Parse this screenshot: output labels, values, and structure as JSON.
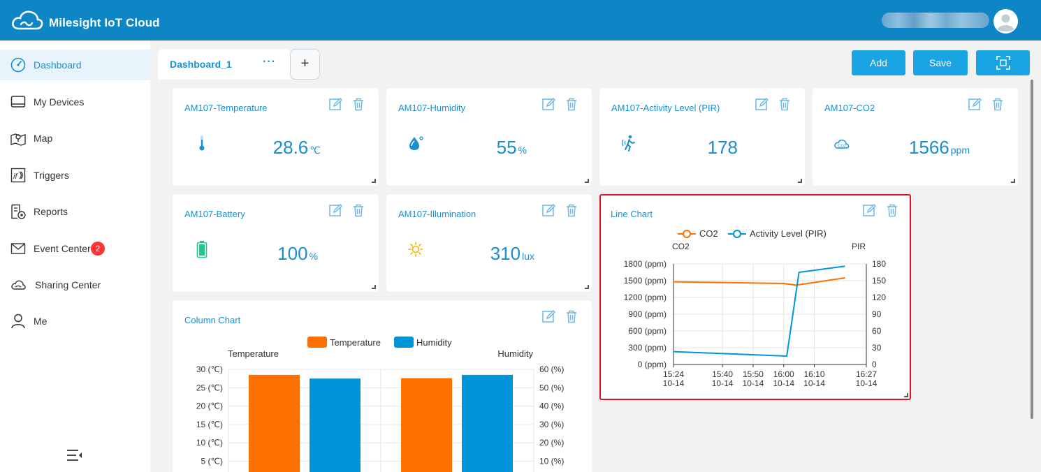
{
  "header": {
    "app_title": "Milesight IoT Cloud"
  },
  "sidebar": {
    "items": [
      {
        "label": "Dashboard",
        "icon": "speedometer-icon",
        "active": true
      },
      {
        "label": "My Devices",
        "icon": "device-icon"
      },
      {
        "label": "Map",
        "icon": "map-icon"
      },
      {
        "label": "Triggers",
        "icon": "triggers-icon"
      },
      {
        "label": "Reports",
        "icon": "reports-icon"
      },
      {
        "label": "Event Center",
        "icon": "envelope-icon",
        "badge": "2"
      },
      {
        "label": "Sharing Center",
        "icon": "cloud-share-icon"
      },
      {
        "label": "Me",
        "icon": "user-icon"
      }
    ]
  },
  "tabs": {
    "active_label": "Dashboard_1",
    "more_label": "···",
    "add_label": "+"
  },
  "toolbar": {
    "add_label": "Add",
    "save_label": "Save"
  },
  "widgets": {
    "temperature": {
      "title": "AM107-Temperature",
      "value": "28.6",
      "unit": "℃"
    },
    "humidity": {
      "title": "AM107-Humidity",
      "value": "55",
      "unit": "%"
    },
    "activity": {
      "title": "AM107-Activity Level (PIR)",
      "value": "178",
      "unit": ""
    },
    "co2": {
      "title": "AM107-CO2",
      "value": "1566",
      "unit": "ppm"
    },
    "battery": {
      "title": "AM107-Battery",
      "value": "100",
      "unit": "%"
    },
    "illumination": {
      "title": "AM107-Illumination",
      "value": "310",
      "unit": "lux"
    }
  },
  "colors": {
    "accent": "#1a8fd0",
    "header": "#0e86c5",
    "orange": "#ff7000",
    "blue": "#0094d9",
    "highlight_border": "#e0141e"
  },
  "chart_data": [
    {
      "type": "bar",
      "title": "Column Chart",
      "categories": [
        "",
        ""
      ],
      "series": [
        {
          "name": "Temperature",
          "values": [
            28.5,
            27.6
          ],
          "axis": "left"
        },
        {
          "name": "Humidity",
          "values": [
            55,
            57
          ],
          "axis": "right"
        }
      ],
      "ylabel": "Temperature",
      "y2label": "Humidity",
      "yticks": [
        "30 (℃)",
        "25 (℃)",
        "20 (℃)",
        "15 (℃)",
        "10 (℃)",
        "5 (℃)"
      ],
      "y2ticks": [
        "60 (%)",
        "50 (%)",
        "40 (%)",
        "30 (%)",
        "20 (%)",
        "10 (%)"
      ],
      "ylim": [
        0,
        30
      ],
      "y2lim": [
        0,
        60
      ],
      "legend": "top"
    },
    {
      "type": "line",
      "title": "Line Chart",
      "x": [
        0,
        16,
        26,
        36,
        46,
        63
      ],
      "xticks": [
        {
          "t": 0,
          "line1": "15:24",
          "line2": "10-14"
        },
        {
          "t": 16,
          "line1": "15:40",
          "line2": "10-14"
        },
        {
          "t": 26,
          "line1": "15:50",
          "line2": "10-14"
        },
        {
          "t": 36,
          "line1": "16:00",
          "line2": "10-14"
        },
        {
          "t": 46,
          "line1": "16:10",
          "line2": "10-14"
        },
        {
          "t": 63,
          "line1": "16:27",
          "line2": "10-14"
        }
      ],
      "series": [
        {
          "name": "CO2",
          "axis": "left",
          "points": [
            [
              0,
              1480
            ],
            [
              36,
              1450
            ],
            [
              40,
              1420
            ],
            [
              56,
              1550
            ]
          ]
        },
        {
          "name": "Activity Level (PIR)",
          "axis": "right",
          "points": [
            [
              0,
              23
            ],
            [
              37,
              15
            ],
            [
              41,
              165
            ],
            [
              56,
              176
            ]
          ]
        }
      ],
      "ylabel": "CO2",
      "y2label": "PIR",
      "yticks": [
        "1800 (ppm)",
        "1500 (ppm)",
        "1200 (ppm)",
        "900 (ppm)",
        "600 (ppm)",
        "300 (ppm)",
        "0 (ppm)"
      ],
      "y2ticks": [
        "180",
        "150",
        "120",
        "90",
        "60",
        "30",
        "0"
      ],
      "ylim": [
        0,
        1800
      ],
      "y2lim": [
        0,
        180
      ],
      "xlim": [
        0,
        63
      ],
      "legend": "top",
      "grid": true
    }
  ]
}
